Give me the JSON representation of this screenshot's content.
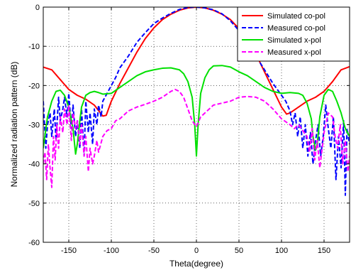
{
  "chart_data": {
    "type": "line",
    "title": "",
    "xlabel": "Theta(degree)",
    "ylabel": "Normalized radiation pattern (dB)",
    "xlim": [
      -180,
      180
    ],
    "ylim": [
      -60,
      0
    ],
    "xticks": [
      -150,
      -100,
      -50,
      0,
      50,
      100,
      150
    ],
    "yticks": [
      0,
      -10,
      -20,
      -30,
      -40,
      -50,
      -60
    ],
    "grid": true,
    "legend_position": "top-right",
    "series": [
      {
        "name": "Simulated co-pol",
        "color": "#ff0000",
        "dash": "solid",
        "x": [
          -180,
          -170,
          -160,
          -150,
          -140,
          -130,
          -120,
          -110,
          -106,
          -100,
          -90,
          -80,
          -70,
          -60,
          -50,
          -40,
          -30,
          -20,
          -10,
          0,
          10,
          20,
          30,
          40,
          50,
          60,
          70,
          80,
          90,
          100,
          106,
          110,
          120,
          130,
          140,
          150,
          160,
          170,
          180
        ],
        "y": [
          -15.3,
          -16,
          -18.5,
          -21,
          -22.5,
          -23.5,
          -25,
          -27.8,
          -27.6,
          -24,
          -19.5,
          -15.5,
          -11.5,
          -8,
          -5.3,
          -3.2,
          -1.8,
          -0.8,
          -0.2,
          0,
          -0.2,
          -0.8,
          -1.8,
          -3.2,
          -5.5,
          -8.5,
          -12,
          -16.5,
          -21,
          -25.5,
          -27.3,
          -27,
          -25.5,
          -24,
          -23,
          -21.5,
          -19,
          -16,
          -15.2
        ]
      },
      {
        "name": "Measured co-pol",
        "color": "#0000ff",
        "dash": "dashed",
        "x": [
          -180,
          -177,
          -175,
          -172,
          -170,
          -167,
          -165,
          -162,
          -160,
          -157,
          -155,
          -152,
          -150,
          -147,
          -145,
          -142,
          -140,
          -137,
          -135,
          -132,
          -130,
          -127,
          -125,
          -122,
          -120,
          -117,
          -115,
          -112,
          -110,
          -105,
          -100,
          -95,
          -90,
          -80,
          -70,
          -60,
          -50,
          -40,
          -30,
          -20,
          -10,
          0,
          10,
          20,
          30,
          40,
          50,
          60,
          70,
          80,
          90,
          100,
          105,
          110,
          113,
          116,
          119,
          122,
          125,
          128,
          131,
          134,
          137,
          140,
          143,
          146,
          149,
          152,
          155,
          158,
          161,
          164,
          167,
          170,
          173,
          175,
          177,
          180
        ],
        "y": [
          -24,
          -36,
          -30,
          -27,
          -33,
          -26,
          -34,
          -23,
          -29,
          -26,
          -23,
          -28,
          -22,
          -31,
          -25,
          -33,
          -29,
          -36,
          -26,
          -38,
          -24,
          -32,
          -27,
          -35,
          -26,
          -30,
          -25,
          -28,
          -24,
          -22,
          -20,
          -18,
          -15.5,
          -12.5,
          -9,
          -6.5,
          -4.2,
          -2.8,
          -1.6,
          -0.6,
          -0.1,
          0,
          -0.2,
          -0.7,
          -1.7,
          -3.5,
          -6,
          -9,
          -12.5,
          -16,
          -19.5,
          -22.5,
          -24,
          -26.5,
          -30,
          -27,
          -33,
          -28,
          -36,
          -30,
          -38,
          -32,
          -40,
          -34,
          -30,
          -38,
          -33,
          -25,
          -31,
          -36,
          -28,
          -44,
          -33,
          -41,
          -29,
          -48,
          -31,
          -35
        ]
      },
      {
        "name": "Simulated x-pol",
        "color": "#00e000",
        "dash": "solid",
        "x": [
          -180,
          -175,
          -170,
          -165,
          -160,
          -155,
          -150,
          -145,
          -142,
          -140,
          -137,
          -135,
          -130,
          -125,
          -120,
          -115,
          -110,
          -100,
          -90,
          -80,
          -70,
          -60,
          -50,
          -40,
          -30,
          -20,
          -15,
          -10,
          -5,
          -2,
          0,
          2,
          5,
          10,
          15,
          20,
          30,
          40,
          50,
          60,
          70,
          80,
          90,
          100,
          110,
          120,
          125,
          130,
          135,
          137,
          140,
          142,
          145,
          150,
          155,
          160,
          165,
          170,
          175,
          180
        ],
        "y": [
          -36,
          -28,
          -24,
          -21.5,
          -21.2,
          -22.5,
          -25.5,
          -31,
          -37.5,
          -35,
          -29,
          -25.5,
          -22.5,
          -21.8,
          -21.5,
          -21.8,
          -22.2,
          -22,
          -20.5,
          -19,
          -17.5,
          -16.5,
          -16,
          -15.6,
          -15.5,
          -16,
          -17,
          -19,
          -23,
          -30,
          -38,
          -30,
          -22,
          -18,
          -16,
          -15,
          -14.9,
          -15.3,
          -16.5,
          -17.5,
          -19,
          -20.5,
          -21.5,
          -22,
          -21.8,
          -22,
          -22.5,
          -24.5,
          -28.5,
          -33,
          -36.5,
          -35,
          -28,
          -22.5,
          -21,
          -21.5,
          -24,
          -27,
          -31,
          -33
        ]
      },
      {
        "name": "Measured x-pol",
        "color": "#ff00ff",
        "dash": "dashed",
        "x": [
          -180,
          -178,
          -176,
          -174,
          -172,
          -170,
          -168,
          -166,
          -164,
          -162,
          -160,
          -157,
          -155,
          -152,
          -150,
          -147,
          -145,
          -142,
          -140,
          -137,
          -135,
          -132,
          -130,
          -127,
          -125,
          -122,
          -120,
          -117,
          -115,
          -110,
          -105,
          -100,
          -95,
          -90,
          -80,
          -70,
          -60,
          -50,
          -40,
          -30,
          -25,
          -20,
          -15,
          -10,
          -5,
          0,
          5,
          10,
          20,
          30,
          40,
          50,
          60,
          70,
          80,
          90,
          100,
          110,
          115,
          120,
          125,
          130,
          133,
          136,
          139,
          142,
          145,
          150,
          155,
          160,
          163,
          166,
          169,
          172,
          175,
          178,
          180
        ],
        "y": [
          -40,
          -37,
          -44,
          -35,
          -41,
          -46,
          -33,
          -39,
          -30,
          -36,
          -28,
          -32,
          -26,
          -30,
          -25,
          -34,
          -27,
          -31,
          -29,
          -35,
          -30,
          -38,
          -33,
          -42,
          -36,
          -40,
          -38,
          -34,
          -37,
          -33,
          -31.5,
          -31,
          -29,
          -28.5,
          -26.5,
          -25.5,
          -24.8,
          -24,
          -23,
          -21.5,
          -21,
          -21.5,
          -23,
          -26,
          -29,
          -30.5,
          -28,
          -27,
          -25,
          -24.5,
          -24,
          -23,
          -22.8,
          -23,
          -24,
          -26,
          -28.5,
          -30,
          -31,
          -30,
          -31.5,
          -33,
          -37,
          -31,
          -39,
          -34,
          -41,
          -32,
          -27,
          -28,
          -33,
          -36,
          -30,
          -40,
          -34,
          -42,
          -38
        ]
      }
    ]
  }
}
